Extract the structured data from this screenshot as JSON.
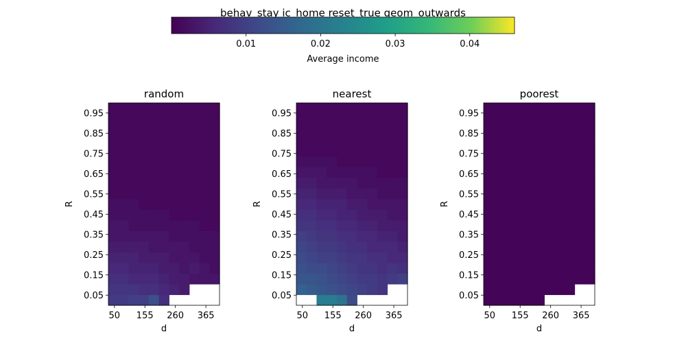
{
  "figure": {
    "suptitle": "behav_stay ic_home reset_true geom_outwards"
  },
  "colorbar": {
    "label": "Average income",
    "ticks": [
      "0.01",
      "0.02",
      "0.03",
      "0.04"
    ],
    "range": [
      0.0,
      0.046
    ]
  },
  "chart_data": [
    {
      "type": "heatmap",
      "title": "random",
      "xlabel": "d",
      "ylabel": "R",
      "xticks": [
        "50",
        "155",
        "260",
        "365"
      ],
      "yticks": [
        "0.05",
        "0.15",
        "0.25",
        "0.35",
        "0.45",
        "0.55",
        "0.65",
        "0.75",
        "0.85",
        "0.95"
      ],
      "ylim": [
        0.0,
        1.0
      ],
      "grid_rows_bottom_to_top": 19,
      "grid_cols": 11,
      "values": [
        [
          0.009,
          0.009,
          0.01,
          0.01,
          0.013,
          0.007,
          null,
          null,
          null,
          null,
          null
        ],
        [
          0.008,
          0.008,
          0.008,
          0.007,
          0.007,
          0.006,
          0.005,
          0.004,
          null,
          null,
          null
        ],
        [
          0.007,
          0.007,
          0.006,
          0.006,
          0.006,
          0.005,
          0.004,
          0.004,
          0.003,
          0.003,
          0.003
        ],
        [
          0.006,
          0.006,
          0.005,
          0.005,
          0.005,
          0.004,
          0.004,
          0.003,
          0.004,
          0.003,
          0.002
        ],
        [
          0.005,
          0.005,
          0.005,
          0.004,
          0.004,
          0.004,
          0.003,
          0.003,
          0.003,
          0.002,
          0.002
        ],
        [
          0.004,
          0.004,
          0.004,
          0.004,
          0.003,
          0.003,
          0.003,
          0.003,
          0.002,
          0.002,
          0.002
        ],
        [
          0.003,
          0.003,
          0.003,
          0.003,
          0.003,
          0.003,
          0.002,
          0.002,
          0.002,
          0.002,
          0.002
        ],
        [
          0.003,
          0.003,
          0.002,
          0.002,
          0.002,
          0.002,
          0.002,
          0.002,
          0.002,
          0.001,
          0.001
        ],
        [
          0.002,
          0.002,
          0.002,
          0.002,
          0.002,
          0.002,
          0.001,
          0.001,
          0.001,
          0.001,
          0.001
        ],
        [
          0.002,
          0.002,
          0.002,
          0.001,
          0.001,
          0.001,
          0.001,
          0.001,
          0.001,
          0.001,
          0.001
        ],
        [
          0.001,
          0.001,
          0.001,
          0.001,
          0.001,
          0.001,
          0.001,
          0.001,
          0.001,
          0.001,
          0.001
        ],
        [
          0.001,
          0.001,
          0.001,
          0.001,
          0.001,
          0.001,
          0.001,
          0.001,
          0.001,
          0.001,
          0.001
        ],
        [
          0.001,
          0.001,
          0.001,
          0.001,
          0.001,
          0.001,
          0.001,
          0.001,
          0.001,
          0.001,
          0.001
        ],
        [
          0.001,
          0.001,
          0.001,
          0.001,
          0.001,
          0.001,
          0.001,
          0.001,
          0.001,
          0.001,
          0.001
        ],
        [
          0.001,
          0.001,
          0.001,
          0.001,
          0.001,
          0.001,
          0.001,
          0.001,
          0.001,
          0.001,
          0.001
        ],
        [
          0.001,
          0.001,
          0.001,
          0.001,
          0.001,
          0.001,
          0.001,
          0.001,
          0.001,
          0.001,
          0.001
        ],
        [
          0.001,
          0.001,
          0.001,
          0.001,
          0.001,
          0.001,
          0.001,
          0.001,
          0.001,
          0.001,
          0.001
        ],
        [
          0.001,
          0.001,
          0.001,
          0.001,
          0.001,
          0.001,
          0.001,
          0.001,
          0.001,
          0.001,
          0.001
        ],
        [
          0.001,
          0.001,
          0.001,
          0.001,
          0.001,
          0.001,
          0.001,
          0.001,
          0.001,
          0.001,
          0.001
        ]
      ]
    },
    {
      "type": "heatmap",
      "title": "nearest",
      "xlabel": "d",
      "ylabel": "R",
      "xticks": [
        "50",
        "155",
        "260",
        "365"
      ],
      "yticks": [
        "0.05",
        "0.15",
        "0.25",
        "0.35",
        "0.45",
        "0.55",
        "0.65",
        "0.75",
        "0.85",
        "0.95"
      ],
      "ylim": [
        0.0,
        1.0
      ],
      "grid_rows_bottom_to_top": 19,
      "grid_cols": 11,
      "values": [
        [
          null,
          null,
          0.022,
          0.022,
          0.02,
          0.012,
          null,
          null,
          null,
          null,
          null
        ],
        [
          0.016,
          0.015,
          0.014,
          0.013,
          0.012,
          0.011,
          0.01,
          0.009,
          0.008,
          null,
          null
        ],
        [
          0.014,
          0.014,
          0.013,
          0.012,
          0.011,
          0.01,
          0.009,
          0.009,
          0.008,
          0.009,
          0.01
        ],
        [
          0.013,
          0.012,
          0.012,
          0.011,
          0.01,
          0.009,
          0.008,
          0.008,
          0.007,
          0.008,
          0.007
        ],
        [
          0.012,
          0.011,
          0.01,
          0.01,
          0.009,
          0.008,
          0.008,
          0.007,
          0.007,
          0.006,
          0.006
        ],
        [
          0.011,
          0.01,
          0.009,
          0.009,
          0.008,
          0.007,
          0.007,
          0.006,
          0.006,
          0.006,
          0.005
        ],
        [
          0.01,
          0.009,
          0.008,
          0.008,
          0.007,
          0.007,
          0.006,
          0.006,
          0.005,
          0.005,
          0.004
        ],
        [
          0.008,
          0.008,
          0.007,
          0.007,
          0.006,
          0.006,
          0.005,
          0.005,
          0.004,
          0.004,
          0.004
        ],
        [
          0.007,
          0.007,
          0.006,
          0.006,
          0.005,
          0.005,
          0.004,
          0.004,
          0.004,
          0.003,
          0.003
        ],
        [
          0.006,
          0.006,
          0.005,
          0.005,
          0.005,
          0.004,
          0.004,
          0.003,
          0.003,
          0.003,
          0.003
        ],
        [
          0.005,
          0.005,
          0.004,
          0.004,
          0.004,
          0.003,
          0.003,
          0.003,
          0.002,
          0.002,
          0.002
        ],
        [
          0.004,
          0.004,
          0.003,
          0.003,
          0.003,
          0.003,
          0.002,
          0.002,
          0.002,
          0.002,
          0.002
        ],
        [
          0.003,
          0.003,
          0.003,
          0.002,
          0.002,
          0.002,
          0.002,
          0.002,
          0.001,
          0.001,
          0.001
        ],
        [
          0.002,
          0.002,
          0.002,
          0.002,
          0.001,
          0.001,
          0.001,
          0.001,
          0.001,
          0.001,
          0.001
        ],
        [
          0.001,
          0.001,
          0.001,
          0.001,
          0.001,
          0.001,
          0.001,
          0.001,
          0.001,
          0.001,
          0.001
        ],
        [
          0.001,
          0.001,
          0.001,
          0.001,
          0.001,
          0.001,
          0.001,
          0.001,
          0.001,
          0.001,
          0.001
        ],
        [
          0.001,
          0.001,
          0.001,
          0.001,
          0.001,
          0.001,
          0.001,
          0.001,
          0.001,
          0.001,
          0.001
        ],
        [
          0.001,
          0.001,
          0.001,
          0.001,
          0.001,
          0.001,
          0.001,
          0.001,
          0.001,
          0.001,
          0.001
        ],
        [
          0.001,
          0.001,
          0.001,
          0.001,
          0.001,
          0.001,
          0.001,
          0.001,
          0.001,
          0.001,
          0.001
        ]
      ]
    },
    {
      "type": "heatmap",
      "title": "poorest",
      "xlabel": "d",
      "ylabel": "R",
      "xticks": [
        "50",
        "155",
        "260",
        "365"
      ],
      "yticks": [
        "0.05",
        "0.15",
        "0.25",
        "0.35",
        "0.45",
        "0.55",
        "0.65",
        "0.75",
        "0.85",
        "0.95"
      ],
      "ylim": [
        0.0,
        1.0
      ],
      "grid_rows_bottom_to_top": 19,
      "grid_cols": 11,
      "values": [
        [
          0.0005,
          0.0005,
          0.0005,
          0.0005,
          0.0005,
          0.0005,
          null,
          null,
          null,
          null,
          null
        ],
        [
          0.0005,
          0.0005,
          0.0005,
          0.0005,
          0.0005,
          0.0005,
          0.0005,
          0.0005,
          0.0005,
          null,
          null
        ],
        [
          0.0005,
          0.0005,
          0.0005,
          0.0005,
          0.0005,
          0.0005,
          0.0005,
          0.0005,
          0.0005,
          0.0005,
          0.0005
        ],
        [
          0.0005,
          0.0005,
          0.0005,
          0.0005,
          0.0005,
          0.0005,
          0.0005,
          0.0005,
          0.0005,
          0.0005,
          0.0005
        ],
        [
          0.0005,
          0.0005,
          0.0005,
          0.0005,
          0.0005,
          0.0005,
          0.0005,
          0.0005,
          0.0005,
          0.0005,
          0.0005
        ],
        [
          0.0005,
          0.0005,
          0.0005,
          0.0005,
          0.0005,
          0.0005,
          0.0005,
          0.0005,
          0.0005,
          0.0005,
          0.0005
        ],
        [
          0.0005,
          0.0005,
          0.0005,
          0.0005,
          0.0005,
          0.0005,
          0.0005,
          0.0005,
          0.0005,
          0.0005,
          0.0005
        ],
        [
          0.0005,
          0.0005,
          0.0005,
          0.0005,
          0.0005,
          0.0005,
          0.0005,
          0.0005,
          0.0005,
          0.0005,
          0.0005
        ],
        [
          0.0005,
          0.0005,
          0.0005,
          0.0005,
          0.0005,
          0.0005,
          0.0005,
          0.0005,
          0.0005,
          0.0005,
          0.0005
        ],
        [
          0.0005,
          0.0005,
          0.0005,
          0.0005,
          0.0005,
          0.0005,
          0.0005,
          0.0005,
          0.0005,
          0.0005,
          0.0005
        ],
        [
          0.0005,
          0.0005,
          0.0005,
          0.0005,
          0.0005,
          0.0005,
          0.0005,
          0.0005,
          0.0005,
          0.0005,
          0.0005
        ],
        [
          0.0005,
          0.0005,
          0.0005,
          0.0005,
          0.0005,
          0.0005,
          0.0005,
          0.0005,
          0.0005,
          0.0005,
          0.0005
        ],
        [
          0.0005,
          0.0005,
          0.0005,
          0.0005,
          0.0005,
          0.0005,
          0.0005,
          0.0005,
          0.0005,
          0.0005,
          0.0005
        ],
        [
          0.0005,
          0.0005,
          0.0005,
          0.0005,
          0.0005,
          0.0005,
          0.0005,
          0.0005,
          0.0005,
          0.0005,
          0.0005
        ],
        [
          0.0005,
          0.0005,
          0.0005,
          0.0005,
          0.0005,
          0.0005,
          0.0005,
          0.0005,
          0.0005,
          0.0005,
          0.0005
        ],
        [
          0.0005,
          0.0005,
          0.0005,
          0.0005,
          0.0005,
          0.0005,
          0.0005,
          0.0005,
          0.0005,
          0.0005,
          0.0005
        ],
        [
          0.0005,
          0.0005,
          0.0005,
          0.0005,
          0.0005,
          0.0005,
          0.0005,
          0.0005,
          0.0005,
          0.0005,
          0.0005
        ],
        [
          0.0005,
          0.0005,
          0.0005,
          0.0005,
          0.0005,
          0.0005,
          0.0005,
          0.0005,
          0.0005,
          0.0005,
          0.0005
        ],
        [
          0.0005,
          0.0005,
          0.0005,
          0.0005,
          0.0005,
          0.0005,
          0.0005,
          0.0005,
          0.0005,
          0.0005,
          0.0005
        ]
      ]
    }
  ]
}
